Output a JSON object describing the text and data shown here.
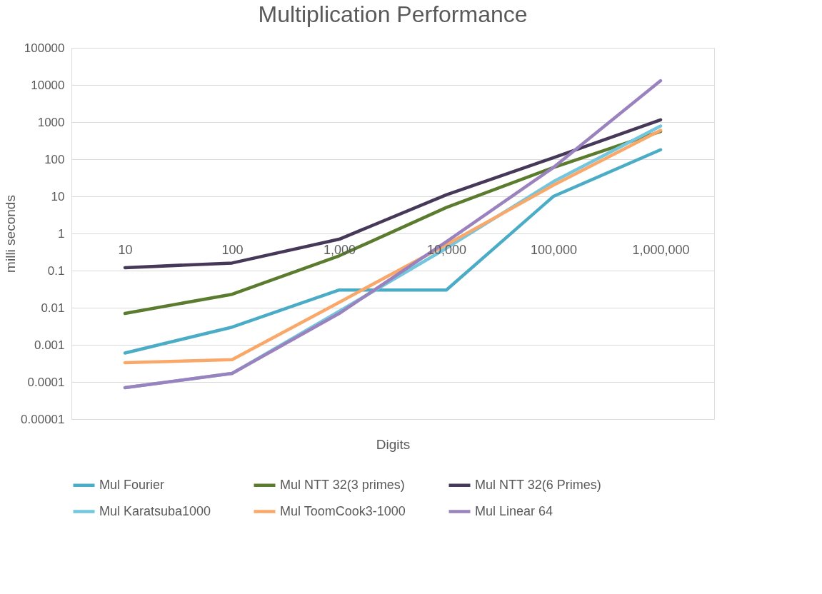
{
  "chart_data": {
    "type": "line",
    "title": "Multiplication Performance",
    "xlabel": "Digits",
    "ylabel": "milli seconds",
    "categories": [
      "10",
      "100",
      "1,000",
      "10,000",
      "100,000",
      "1,000,000"
    ],
    "series": [
      {
        "name": "Mul Fourier",
        "color": "#4bacc6",
        "values": [
          0.0006,
          0.003,
          0.03,
          0.03,
          10,
          180
        ]
      },
      {
        "name": "Mul NTT 32(3 primes)",
        "color": "#5b7b2e",
        "values": [
          0.007,
          0.023,
          0.25,
          5,
          60,
          560
        ]
      },
      {
        "name": "Mul NTT 32(6 Primes)",
        "color": "#463858",
        "values": [
          0.12,
          0.16,
          0.7,
          11,
          110,
          1150
        ]
      },
      {
        "name": "Mul Karatsuba1000",
        "color": "#72c6de",
        "values": [
          7e-05,
          0.00017,
          0.008,
          0.4,
          25,
          780
        ]
      },
      {
        "name": "Mul ToomCook3-1000",
        "color": "#f9a86a",
        "values": [
          0.00033,
          0.0004,
          0.014,
          0.5,
          20,
          600
        ]
      },
      {
        "name": "Mul Linear 64",
        "color": "#9a82bf",
        "values": [
          7e-05,
          0.00017,
          0.007,
          0.6,
          60,
          13000
        ]
      }
    ],
    "log": "y",
    "ylim": [
      1e-05,
      100000
    ],
    "yticks": [
      {
        "value": 1e-05,
        "label": "0.00001"
      },
      0.0001,
      0.001,
      0.01,
      0.1,
      1,
      10,
      100,
      1000,
      10000,
      100000
    ],
    "grid": "y",
    "legend": "bottom",
    "marker": "none",
    "line_style": "solid"
  }
}
